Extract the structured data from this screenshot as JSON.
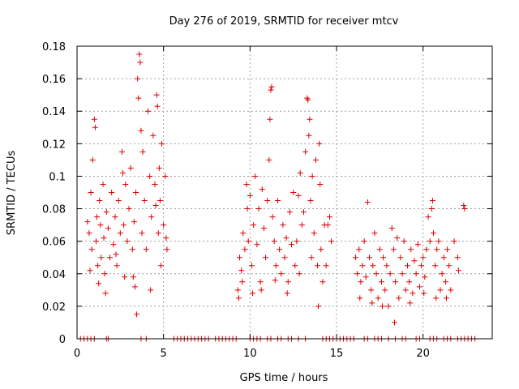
{
  "chart_data": {
    "type": "scatter",
    "title": "Day 276 of 2019, SRMTID for receiver mtcv",
    "xlabel": "GPS time / hours",
    "ylabel": "SRMTID / TECUs",
    "xlim": [
      0,
      24
    ],
    "ylim": [
      0,
      0.18
    ],
    "x_ticks": [
      0,
      5,
      10,
      15,
      20
    ],
    "x_tick_labels": [
      "0",
      "5",
      "10",
      "15",
      "20"
    ],
    "y_ticks": [
      0,
      0.02,
      0.04,
      0.06,
      0.08,
      0.1,
      0.12,
      0.14,
      0.16,
      0.18
    ],
    "y_tick_labels": [
      "0",
      "0.02",
      "0.04",
      "0.06",
      "0.08",
      "0.1",
      "0.12",
      "0.14",
      "0.16",
      "0.18"
    ],
    "grid": true,
    "marker": "+",
    "color": "#e00000",
    "series": [
      {
        "name": "SRMTID",
        "points": [
          [
            0.6,
            0.072
          ],
          [
            0.7,
            0.065
          ],
          [
            0.8,
            0.09
          ],
          [
            0.85,
            0.055
          ],
          [
            0.9,
            0.11
          ],
          [
            1.0,
            0.135
          ],
          [
            1.05,
            0.13
          ],
          [
            1.1,
            0.06
          ],
          [
            1.15,
            0.075
          ],
          [
            1.2,
            0.045
          ],
          [
            1.3,
            0.085
          ],
          [
            1.35,
            0.07
          ],
          [
            1.4,
            0.05
          ],
          [
            1.5,
            0.095
          ],
          [
            1.55,
            0.062
          ],
          [
            1.6,
            0.04
          ],
          [
            1.7,
            0.078
          ],
          [
            1.8,
            0.068
          ],
          [
            1.9,
            0.05
          ],
          [
            2.0,
            0.09
          ],
          [
            2.1,
            0.058
          ],
          [
            2.2,
            0.075
          ],
          [
            2.3,
            0.045
          ],
          [
            2.4,
            0.085
          ],
          [
            2.5,
            0.065
          ],
          [
            2.6,
            0.115
          ],
          [
            2.65,
            0.102
          ],
          [
            2.7,
            0.07
          ],
          [
            2.8,
            0.095
          ],
          [
            2.9,
            0.06
          ],
          [
            3.0,
            0.08
          ],
          [
            3.1,
            0.105
          ],
          [
            3.2,
            0.055
          ],
          [
            3.25,
            0.038
          ],
          [
            3.3,
            0.072
          ],
          [
            3.4,
            0.09
          ],
          [
            3.45,
            0.015
          ],
          [
            3.5,
            0.16
          ],
          [
            3.55,
            0.148
          ],
          [
            3.6,
            0.175
          ],
          [
            3.65,
            0.17
          ],
          [
            3.7,
            0.128
          ],
          [
            3.75,
            0.065
          ],
          [
            3.8,
            0.115
          ],
          [
            3.9,
            0.085
          ],
          [
            4.0,
            0.055
          ],
          [
            4.1,
            0.14
          ],
          [
            4.2,
            0.1
          ],
          [
            4.3,
            0.075
          ],
          [
            4.4,
            0.125
          ],
          [
            4.5,
            0.095
          ],
          [
            4.6,
            0.15
          ],
          [
            4.65,
            0.143
          ],
          [
            4.7,
            0.065
          ],
          [
            4.75,
            0.105
          ],
          [
            4.8,
            0.085
          ],
          [
            4.9,
            0.12
          ],
          [
            5.0,
            0.07
          ],
          [
            5.1,
            0.1
          ],
          [
            5.2,
            0.055
          ],
          [
            0.75,
            0.042
          ],
          [
            1.25,
            0.034
          ],
          [
            1.65,
            0.028
          ],
          [
            2.25,
            0.052
          ],
          [
            2.75,
            0.038
          ],
          [
            3.35,
            0.032
          ],
          [
            4.25,
            0.03
          ],
          [
            4.85,
            0.045
          ],
          [
            5.15,
            0.062
          ],
          [
            4.55,
            0.082
          ],
          [
            9.3,
            0.03
          ],
          [
            9.35,
            0.025
          ],
          [
            9.4,
            0.05
          ],
          [
            9.5,
            0.042
          ],
          [
            9.6,
            0.065
          ],
          [
            9.7,
            0.055
          ],
          [
            9.8,
            0.095
          ],
          [
            9.85,
            0.08
          ],
          [
            9.9,
            0.06
          ],
          [
            10.0,
            0.088
          ],
          [
            10.1,
            0.045
          ],
          [
            10.2,
            0.07
          ],
          [
            10.3,
            0.1
          ],
          [
            10.4,
            0.058
          ],
          [
            10.5,
            0.08
          ],
          [
            10.6,
            0.035
          ],
          [
            10.7,
            0.092
          ],
          [
            10.8,
            0.068
          ],
          [
            10.9,
            0.05
          ],
          [
            11.0,
            0.085
          ],
          [
            11.1,
            0.11
          ],
          [
            11.15,
            0.135
          ],
          [
            11.2,
            0.153
          ],
          [
            11.25,
            0.155
          ],
          [
            11.3,
            0.075
          ],
          [
            11.4,
            0.06
          ],
          [
            11.5,
            0.045
          ],
          [
            11.6,
            0.085
          ],
          [
            11.7,
            0.055
          ],
          [
            11.8,
            0.04
          ],
          [
            11.9,
            0.07
          ],
          [
            12.0,
            0.05
          ],
          [
            12.1,
            0.062
          ],
          [
            12.2,
            0.035
          ],
          [
            12.3,
            0.078
          ],
          [
            12.4,
            0.058
          ],
          [
            12.5,
            0.09
          ],
          [
            12.6,
            0.045
          ],
          [
            12.7,
            0.06
          ],
          [
            12.8,
            0.088
          ],
          [
            12.9,
            0.102
          ],
          [
            13.0,
            0.07
          ],
          [
            13.1,
            0.078
          ],
          [
            13.2,
            0.115
          ],
          [
            13.3,
            0.148
          ],
          [
            13.35,
            0.147
          ],
          [
            13.4,
            0.125
          ],
          [
            13.45,
            0.135
          ],
          [
            13.5,
            0.085
          ],
          [
            13.6,
            0.1
          ],
          [
            13.7,
            0.065
          ],
          [
            13.8,
            0.11
          ],
          [
            13.9,
            0.045
          ],
          [
            13.95,
            0.02
          ],
          [
            14.0,
            0.12
          ],
          [
            14.05,
            0.095
          ],
          [
            14.1,
            0.055
          ],
          [
            14.2,
            0.035
          ],
          [
            14.3,
            0.07
          ],
          [
            14.4,
            0.045
          ],
          [
            14.5,
            0.07
          ],
          [
            14.6,
            0.075
          ],
          [
            14.7,
            0.06
          ],
          [
            9.55,
            0.035
          ],
          [
            10.15,
            0.028
          ],
          [
            10.65,
            0.03
          ],
          [
            11.45,
            0.036
          ],
          [
            12.15,
            0.028
          ],
          [
            12.85,
            0.04
          ],
          [
            13.55,
            0.05
          ],
          [
            16.1,
            0.05
          ],
          [
            16.2,
            0.04
          ],
          [
            16.3,
            0.055
          ],
          [
            16.4,
            0.035
          ],
          [
            16.5,
            0.045
          ],
          [
            16.6,
            0.06
          ],
          [
            16.7,
            0.038
          ],
          [
            16.8,
            0.084
          ],
          [
            16.9,
            0.05
          ],
          [
            17.0,
            0.03
          ],
          [
            17.1,
            0.045
          ],
          [
            17.2,
            0.065
          ],
          [
            17.3,
            0.04
          ],
          [
            17.4,
            0.025
          ],
          [
            17.5,
            0.055
          ],
          [
            17.6,
            0.035
          ],
          [
            17.7,
            0.05
          ],
          [
            17.8,
            0.03
          ],
          [
            17.9,
            0.045
          ],
          [
            18.0,
            0.02
          ],
          [
            18.1,
            0.04
          ],
          [
            18.2,
            0.068
          ],
          [
            18.3,
            0.055
          ],
          [
            18.4,
            0.035
          ],
          [
            18.5,
            0.062
          ],
          [
            18.6,
            0.025
          ],
          [
            18.7,
            0.05
          ],
          [
            18.8,
            0.04
          ],
          [
            18.9,
            0.06
          ],
          [
            19.0,
            0.03
          ],
          [
            19.1,
            0.045
          ],
          [
            19.2,
            0.035
          ],
          [
            19.3,
            0.055
          ],
          [
            19.4,
            0.028
          ],
          [
            19.5,
            0.048
          ],
          [
            19.6,
            0.04
          ],
          [
            19.7,
            0.058
          ],
          [
            19.8,
            0.032
          ],
          [
            19.9,
            0.045
          ],
          [
            20.0,
            0.05
          ],
          [
            20.1,
            0.038
          ],
          [
            20.2,
            0.055
          ],
          [
            20.3,
            0.075
          ],
          [
            20.4,
            0.06
          ],
          [
            20.5,
            0.08
          ],
          [
            20.55,
            0.085
          ],
          [
            20.6,
            0.065
          ],
          [
            20.7,
            0.045
          ],
          [
            20.8,
            0.055
          ],
          [
            20.9,
            0.06
          ],
          [
            21.0,
            0.03
          ],
          [
            21.1,
            0.04
          ],
          [
            21.2,
            0.05
          ],
          [
            21.3,
            0.035
          ],
          [
            21.4,
            0.055
          ],
          [
            21.5,
            0.045
          ],
          [
            21.6,
            0.03
          ],
          [
            21.8,
            0.06
          ],
          [
            22.0,
            0.05
          ],
          [
            22.4,
            0.08
          ],
          [
            16.35,
            0.025
          ],
          [
            17.05,
            0.022
          ],
          [
            17.65,
            0.02
          ],
          [
            18.35,
            0.01
          ],
          [
            19.25,
            0.022
          ],
          [
            20.05,
            0.028
          ],
          [
            20.75,
            0.025
          ],
          [
            21.35,
            0.025
          ],
          [
            22.05,
            0.042
          ],
          [
            22.35,
            0.082
          ]
        ]
      }
    ],
    "zero_markers_x": [
      0.2,
      0.4,
      0.6,
      0.8,
      1.0,
      1.7,
      1.8,
      3.7,
      4.0,
      5.6,
      5.8,
      6.0,
      6.2,
      6.4,
      6.6,
      6.8,
      7.0,
      7.2,
      7.4,
      7.6,
      8.0,
      8.2,
      8.4,
      8.6,
      8.8,
      9.0,
      9.2,
      10.0,
      10.2,
      10.4,
      10.6,
      11.0,
      11.2,
      11.6,
      11.8,
      12.2,
      12.4,
      12.8,
      13.2,
      14.2,
      14.4,
      14.6,
      14.8,
      15.0,
      15.2,
      15.4,
      15.6,
      15.8,
      16.0,
      16.6,
      16.8,
      17.2,
      17.4,
      17.6,
      18.0,
      18.4,
      18.8,
      19.0,
      19.6,
      19.8,
      20.4,
      20.6,
      20.8,
      21.2,
      21.4,
      21.6,
      22.0,
      22.2,
      22.4,
      22.6,
      22.8,
      23.0
    ]
  }
}
